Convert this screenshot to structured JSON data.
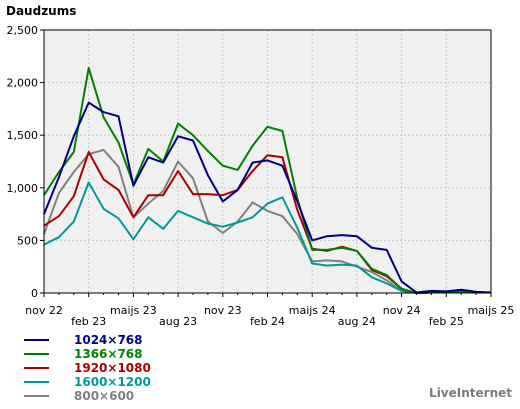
{
  "chart_data": {
    "type": "line",
    "title": "Daudzums",
    "xlabel": "",
    "ylabel": "",
    "ylim": [
      0,
      2500
    ],
    "yticks": [
      0,
      500,
      1000,
      1500,
      2000,
      2500
    ],
    "ytick_labels": [
      "0",
      "500",
      "1,000",
      "1,500",
      "2,000",
      "2,500"
    ],
    "x_tick_labels": [
      "nov 22",
      "feb 23",
      "maijs 23",
      "aug 23",
      "nov 23",
      "feb 24",
      "maijs 24",
      "aug 24",
      "nov 24",
      "feb 25",
      "maijs 25"
    ],
    "x_tick_month_index": [
      0,
      3,
      6,
      9,
      12,
      15,
      18,
      21,
      24,
      27,
      30
    ],
    "x_month_start": 0,
    "x_month_end": 30,
    "grid": true,
    "colors": {
      "plot_background": "#f0f0f0",
      "grid": "#c8c8c8"
    },
    "series": [
      {
        "name": "1024×768",
        "color": "#000080",
        "points": [
          [
            0,
            750
          ],
          [
            1,
            1100
          ],
          [
            2,
            1490
          ],
          [
            3,
            1810
          ],
          [
            4,
            1720
          ],
          [
            5,
            1680
          ],
          [
            6,
            1020
          ],
          [
            7,
            1290
          ],
          [
            8,
            1240
          ],
          [
            9,
            1490
          ],
          [
            10,
            1450
          ],
          [
            11,
            1120
          ],
          [
            12,
            870
          ],
          [
            13,
            980
          ],
          [
            14,
            1240
          ],
          [
            15,
            1260
          ],
          [
            16,
            1210
          ],
          [
            17,
            870
          ],
          [
            18,
            500
          ],
          [
            19,
            540
          ],
          [
            20,
            550
          ],
          [
            21,
            540
          ],
          [
            22,
            430
          ],
          [
            23,
            410
          ],
          [
            24,
            110
          ],
          [
            25,
            5
          ],
          [
            26,
            20
          ],
          [
            27,
            15
          ],
          [
            28,
            30
          ],
          [
            29,
            10
          ],
          [
            30,
            5
          ]
        ]
      },
      {
        "name": "1366×768",
        "color": "#008000",
        "points": [
          [
            0,
            930
          ],
          [
            1,
            1150
          ],
          [
            2,
            1340
          ],
          [
            3,
            2140
          ],
          [
            4,
            1670
          ],
          [
            5,
            1430
          ],
          [
            6,
            1030
          ],
          [
            7,
            1370
          ],
          [
            8,
            1250
          ],
          [
            9,
            1610
          ],
          [
            10,
            1500
          ],
          [
            11,
            1350
          ],
          [
            12,
            1210
          ],
          [
            13,
            1170
          ],
          [
            14,
            1400
          ],
          [
            15,
            1580
          ],
          [
            16,
            1540
          ],
          [
            17,
            900
          ],
          [
            18,
            410
          ],
          [
            19,
            410
          ],
          [
            20,
            430
          ],
          [
            21,
            400
          ],
          [
            22,
            230
          ],
          [
            23,
            170
          ],
          [
            24,
            40
          ],
          [
            25,
            0
          ],
          [
            26,
            5
          ],
          [
            27,
            5
          ],
          [
            28,
            15
          ],
          [
            29,
            5
          ],
          [
            30,
            5
          ]
        ]
      },
      {
        "name": "1920×1080",
        "color": "#aa0000",
        "points": [
          [
            0,
            640
          ],
          [
            1,
            730
          ],
          [
            2,
            920
          ],
          [
            3,
            1340
          ],
          [
            4,
            1080
          ],
          [
            5,
            980
          ],
          [
            6,
            720
          ],
          [
            7,
            930
          ],
          [
            8,
            930
          ],
          [
            9,
            1160
          ],
          [
            10,
            940
          ],
          [
            11,
            940
          ],
          [
            12,
            930
          ],
          [
            13,
            980
          ],
          [
            14,
            1160
          ],
          [
            15,
            1310
          ],
          [
            16,
            1290
          ],
          [
            17,
            790
          ],
          [
            18,
            420
          ],
          [
            19,
            400
          ],
          [
            20,
            440
          ],
          [
            21,
            400
          ],
          [
            22,
            220
          ],
          [
            23,
            160
          ],
          [
            24,
            40
          ],
          [
            25,
            0
          ],
          [
            26,
            5
          ],
          [
            27,
            5
          ],
          [
            28,
            10
          ],
          [
            29,
            5
          ],
          [
            30,
            5
          ]
        ]
      },
      {
        "name": "1600×1200",
        "color": "#009999",
        "points": [
          [
            0,
            460
          ],
          [
            1,
            530
          ],
          [
            2,
            680
          ],
          [
            3,
            1050
          ],
          [
            4,
            800
          ],
          [
            5,
            710
          ],
          [
            6,
            510
          ],
          [
            7,
            720
          ],
          [
            8,
            610
          ],
          [
            9,
            780
          ],
          [
            10,
            720
          ],
          [
            11,
            660
          ],
          [
            12,
            630
          ],
          [
            13,
            670
          ],
          [
            14,
            720
          ],
          [
            15,
            850
          ],
          [
            16,
            910
          ],
          [
            17,
            620
          ],
          [
            18,
            280
          ],
          [
            19,
            260
          ],
          [
            20,
            270
          ],
          [
            21,
            260
          ],
          [
            22,
            150
          ],
          [
            23,
            90
          ],
          [
            24,
            20
          ],
          [
            25,
            0
          ],
          [
            26,
            5
          ],
          [
            27,
            5
          ],
          [
            28,
            10
          ],
          [
            29,
            5
          ],
          [
            30,
            5
          ]
        ]
      },
      {
        "name": "800×600",
        "color": "#808080",
        "points": [
          [
            0,
            560
          ],
          [
            1,
            950
          ],
          [
            2,
            1150
          ],
          [
            3,
            1320
          ],
          [
            4,
            1360
          ],
          [
            5,
            1200
          ],
          [
            6,
            720
          ],
          [
            7,
            850
          ],
          [
            8,
            970
          ],
          [
            9,
            1250
          ],
          [
            10,
            1090
          ],
          [
            11,
            680
          ],
          [
            12,
            570
          ],
          [
            13,
            680
          ],
          [
            14,
            860
          ],
          [
            15,
            780
          ],
          [
            16,
            730
          ],
          [
            17,
            560
          ],
          [
            18,
            300
          ],
          [
            19,
            310
          ],
          [
            20,
            300
          ],
          [
            21,
            250
          ],
          [
            22,
            200
          ],
          [
            23,
            120
          ],
          [
            24,
            20
          ],
          [
            25,
            0
          ],
          [
            26,
            5
          ],
          [
            27,
            5
          ],
          [
            28,
            10
          ],
          [
            29,
            5
          ],
          [
            30,
            5
          ]
        ]
      }
    ]
  },
  "watermark": "LiveInternet"
}
